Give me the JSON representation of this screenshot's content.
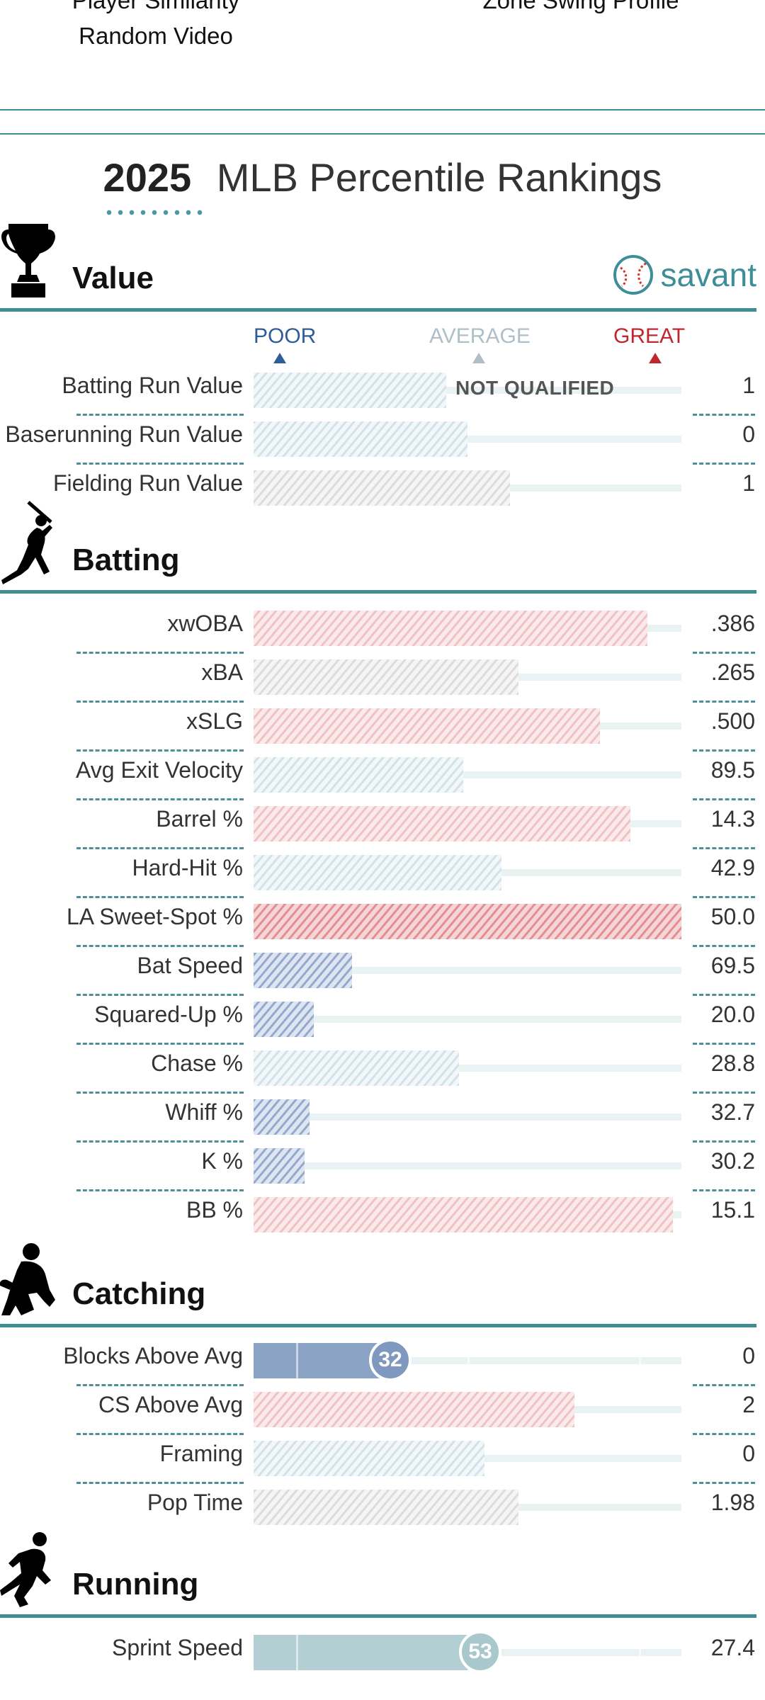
{
  "top_links": {
    "left_cut": "Player Similarity",
    "right_cut": "Zone Swing Profile",
    "random_video": "Random Video"
  },
  "title": {
    "year": "2025",
    "text": "MLB Percentile Rankings"
  },
  "savant_logo_text": "savant",
  "scale": {
    "poor": "POOR",
    "average": "AVERAGE",
    "great": "GREAT"
  },
  "colors": {
    "teal": "#3f8c92",
    "poor": "#2f5d9a",
    "great": "#c0272d",
    "average": "#aebfc8"
  },
  "sections": {
    "value": {
      "title": "Value",
      "not_qualified": "NOT QUALIFIED",
      "metrics": [
        {
          "name": "Batting Run Value",
          "value": "1",
          "percentile": 45
        },
        {
          "name": "Baserunning Run Value",
          "value": "0",
          "percentile": 50
        },
        {
          "name": "Fielding Run Value",
          "value": "1",
          "percentile": 60
        }
      ]
    },
    "batting": {
      "title": "Batting",
      "metrics": [
        {
          "name": "xwOBA",
          "value": ".386",
          "percentile": 92
        },
        {
          "name": "xBA",
          "value": ".265",
          "percentile": 62
        },
        {
          "name": "xSLG",
          "value": ".500",
          "percentile": 81
        },
        {
          "name": "Avg Exit Velocity",
          "value": "89.5",
          "percentile": 49
        },
        {
          "name": "Barrel %",
          "value": "14.3",
          "percentile": 88
        },
        {
          "name": "Hard-Hit %",
          "value": "42.9",
          "percentile": 58
        },
        {
          "name": "LA Sweet-Spot %",
          "value": "50.0",
          "percentile": 100
        },
        {
          "name": "Bat Speed",
          "value": "69.5",
          "percentile": 23
        },
        {
          "name": "Squared-Up %",
          "value": "20.0",
          "percentile": 14
        },
        {
          "name": "Chase %",
          "value": "28.8",
          "percentile": 48
        },
        {
          "name": "Whiff %",
          "value": "32.7",
          "percentile": 13
        },
        {
          "name": "K %",
          "value": "30.2",
          "percentile": 12
        },
        {
          "name": "BB %",
          "value": "15.1",
          "percentile": 98
        }
      ]
    },
    "catching": {
      "title": "Catching",
      "metrics": [
        {
          "name": "Blocks Above Avg",
          "value": "0",
          "percentile": 32,
          "badge": "32"
        },
        {
          "name": "CS Above Avg",
          "value": "2",
          "percentile": 75
        },
        {
          "name": "Framing",
          "value": "0",
          "percentile": 54
        },
        {
          "name": "Pop Time",
          "value": "1.98",
          "percentile": 62
        }
      ]
    },
    "running": {
      "title": "Running",
      "metrics": [
        {
          "name": "Sprint Speed",
          "value": "27.4",
          "percentile": 53,
          "badge": "53"
        }
      ]
    }
  }
}
